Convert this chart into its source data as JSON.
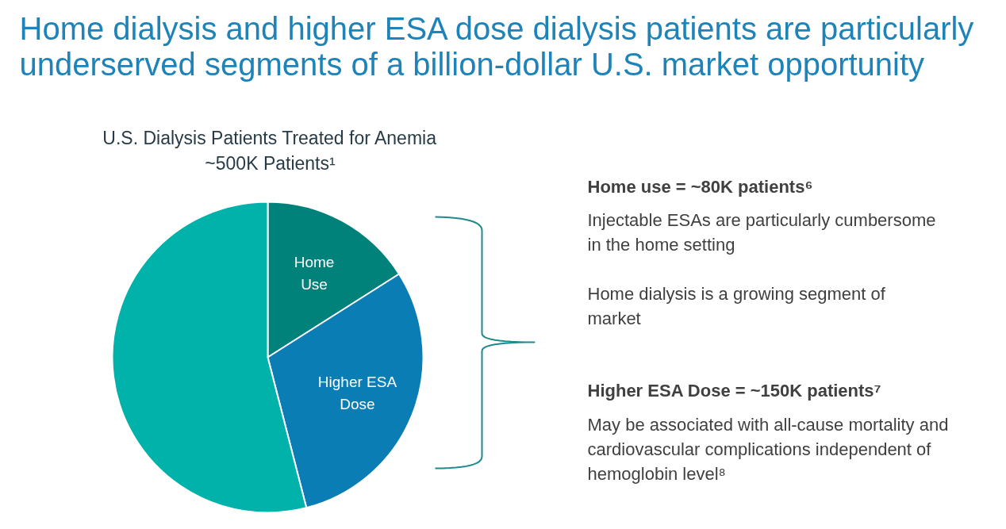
{
  "chart_data": {
    "type": "pie",
    "title": "Home dialysis and higher ESA dose dialysis patients are particularly\nunderserved segments of a billion-dollar U.S. market opportunity",
    "subtitle": "U.S. Dialysis Patients Treated for Anemia\n~500K Patients¹",
    "categories": [
      "Home\nUse",
      "Higher ESA\nDose",
      null
    ],
    "values": [
      16,
      30,
      54
    ],
    "colors": [
      "#00827a",
      "#0a7db4",
      "#00b2a9"
    ],
    "annotations": [
      "Home use = ~80K patients⁶",
      "Injectable ESAs are particularly cumbersome\nin the home setting",
      "Home dialysis is a growing segment of\nmarket",
      "Higher ESA Dose = ~150K patients⁷",
      "May be associated with all-cause mortality and\ncardiovascular complications independent of\nhemoglobin level⁸"
    ]
  }
}
